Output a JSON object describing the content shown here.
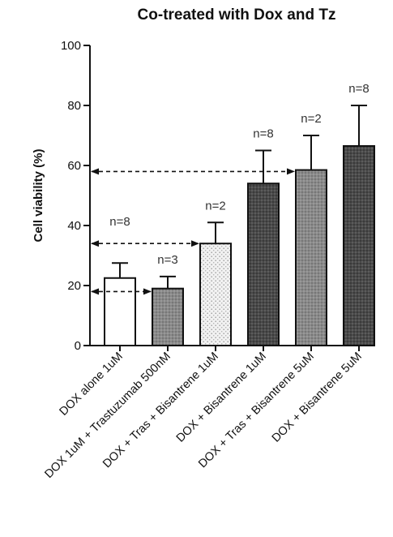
{
  "chart_data": {
    "type": "bar",
    "title": "Co-treated with Dox and Tz",
    "ylabel": "Cell viability (%)",
    "xlabel": "",
    "ylim": [
      0,
      100
    ],
    "yticks": [
      0,
      20,
      40,
      60,
      80,
      100
    ],
    "ytick_labels": [
      "0",
      "20",
      "40",
      "60",
      "80",
      "100"
    ],
    "grid": false,
    "legend": "none",
    "categories": [
      "DOX alone 1uM",
      "DOX 1uM + Trastuzumab 500nM",
      "DOX + Tras + Bisantrene 1uM",
      "DOX + Bisantrene 1uM",
      "DOX + Tras + Bisantrene 5uM",
      "DOX + Bisantrene 5uM"
    ],
    "values": [
      22.5,
      19,
      34,
      54,
      58.5,
      66.5
    ],
    "error_upper": [
      27.5,
      23,
      41,
      65,
      70,
      80
    ],
    "n_labels": [
      "n=8",
      "n=3",
      "n=2",
      "n=8",
      "n=2",
      "n=8"
    ],
    "bar_fills": [
      "white",
      "gray-dotted",
      "light-dotted",
      "dark-dotted",
      "gray-dotted",
      "dark-dotted"
    ],
    "comparison_arrows": [
      {
        "y": 18,
        "from": 0,
        "to": 1
      },
      {
        "y": 34,
        "from": 0,
        "to": 2
      },
      {
        "y": 58,
        "from": 0,
        "to": 4
      }
    ]
  }
}
